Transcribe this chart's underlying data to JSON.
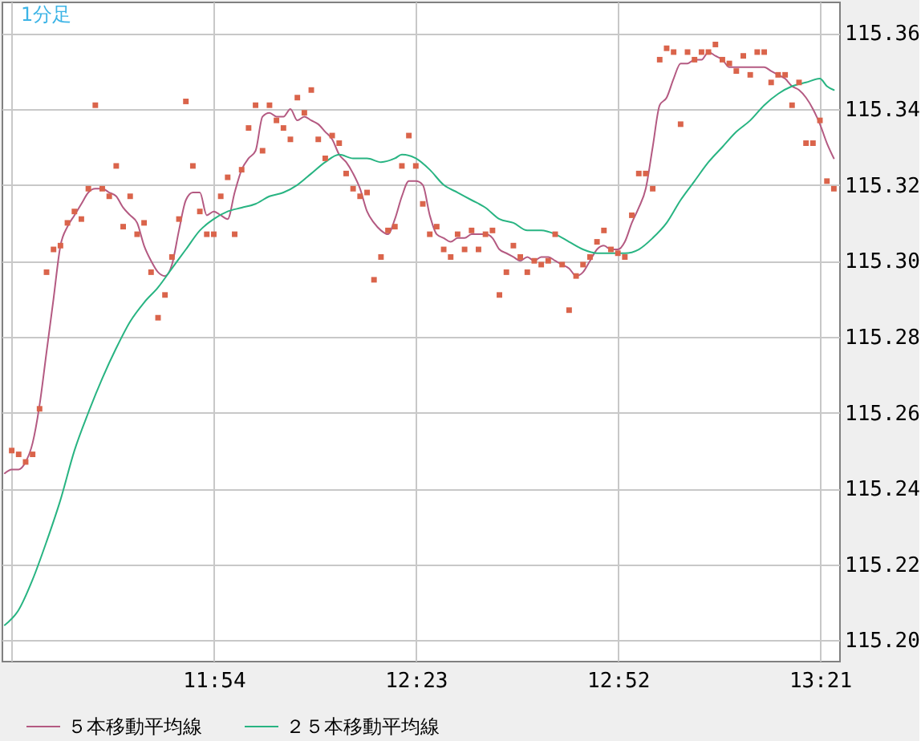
{
  "chart_data": {
    "type": "scatter",
    "title": "1分足",
    "xlim": [
      11.3925,
      13.396
    ],
    "xticks": [
      {
        "value": 11.4167,
        "label": null
      },
      {
        "value": 11.9,
        "label": "11:54"
      },
      {
        "value": 12.3833,
        "label": "12:23"
      },
      {
        "value": 12.8667,
        "label": "12:52"
      },
      {
        "value": 13.35,
        "label": "13:21"
      }
    ],
    "ylim": [
      115.1946,
      115.3683
    ],
    "yticks": [
      {
        "value": 115.2,
        "label": "115.20"
      },
      {
        "value": 115.22,
        "label": "115.22"
      },
      {
        "value": 115.24,
        "label": "115.24"
      },
      {
        "value": 115.26,
        "label": "115.26"
      },
      {
        "value": 115.28,
        "label": "115.28"
      },
      {
        "value": 115.3,
        "label": "115.30"
      },
      {
        "value": 115.32,
        "label": "115.32"
      },
      {
        "value": 115.34,
        "label": "115.34"
      },
      {
        "value": 115.36,
        "label": "115.36"
      }
    ],
    "grid": true,
    "legend": "bottom",
    "x": [
      11.4,
      11.4167,
      11.4333,
      11.45,
      11.4667,
      11.4833,
      11.5,
      11.5167,
      11.5333,
      11.55,
      11.5667,
      11.5833,
      11.6,
      11.6167,
      11.6333,
      11.65,
      11.6667,
      11.6833,
      11.7,
      11.7167,
      11.7333,
      11.75,
      11.7667,
      11.7833,
      11.8,
      11.8167,
      11.8333,
      11.85,
      11.8667,
      11.8833,
      11.9,
      11.9167,
      11.9333,
      11.95,
      11.9667,
      11.9833,
      12.0,
      12.0167,
      12.0333,
      12.05,
      12.0667,
      12.0833,
      12.1,
      12.1167,
      12.1333,
      12.15,
      12.1667,
      12.1833,
      12.2,
      12.2167,
      12.2333,
      12.25,
      12.2667,
      12.2833,
      12.3,
      12.3167,
      12.3333,
      12.35,
      12.3667,
      12.3833,
      12.4,
      12.4167,
      12.4333,
      12.45,
      12.4667,
      12.4833,
      12.5,
      12.5167,
      12.5333,
      12.55,
      12.5667,
      12.5833,
      12.6,
      12.6167,
      12.6333,
      12.65,
      12.6667,
      12.6833,
      12.7,
      12.7167,
      12.7333,
      12.75,
      12.7667,
      12.7833,
      12.8,
      12.8167,
      12.8333,
      12.85,
      12.8667,
      12.8833,
      12.9,
      12.9167,
      12.9333,
      12.95,
      12.9667,
      12.9833,
      13.0,
      13.0167,
      13.0333,
      13.05,
      13.0667,
      13.0833,
      13.1,
      13.1167,
      13.1333,
      13.15,
      13.1667,
      13.1833,
      13.2,
      13.2167,
      13.2333,
      13.25,
      13.2667,
      13.2833,
      13.3,
      13.3167,
      13.3333,
      13.35,
      13.3667,
      13.3833
    ],
    "series": [
      {
        "color": "#da644b",
        "marker": "square",
        "values": [
          null,
          115.25,
          115.249,
          115.247,
          115.249,
          115.261,
          115.297,
          115.303,
          115.304,
          115.31,
          115.313,
          115.311,
          115.319,
          115.341,
          115.319,
          115.317,
          115.325,
          115.309,
          115.317,
          115.307,
          115.31,
          115.297,
          115.285,
          115.291,
          115.301,
          115.311,
          115.342,
          115.325,
          115.313,
          115.307,
          115.307,
          115.317,
          115.322,
          115.307,
          115.324,
          115.335,
          115.341,
          115.329,
          115.341,
          115.337,
          115.335,
          115.332,
          115.343,
          115.339,
          115.345,
          115.332,
          115.327,
          115.333,
          115.331,
          115.323,
          115.319,
          115.317,
          115.318,
          115.295,
          115.301,
          115.308,
          115.309,
          115.325,
          115.333,
          115.325,
          115.315,
          115.307,
          115.309,
          115.303,
          115.301,
          115.307,
          115.303,
          115.308,
          115.303,
          115.307,
          115.308,
          115.291,
          115.297,
          115.304,
          115.301,
          115.297,
          115.3,
          115.299,
          115.3,
          115.307,
          115.299,
          115.287,
          115.296,
          115.299,
          115.301,
          115.305,
          115.308,
          115.303,
          115.302,
          115.301,
          115.312,
          115.323,
          115.323,
          115.319,
          115.353,
          115.356,
          115.355,
          115.336,
          115.355,
          115.353,
          115.355,
          115.355,
          115.357,
          115.353,
          115.352,
          115.35,
          115.354,
          115.349,
          115.355,
          115.355,
          115.347,
          115.349,
          115.349,
          115.341,
          115.347,
          115.331,
          115.331,
          115.337,
          115.321,
          115.319
        ]
      },
      {
        "type": "line",
        "name": "５本移動平均線",
        "color": "#b45a82",
        "values": [
          115.244,
          115.245,
          115.245,
          115.247,
          115.252,
          115.262,
          115.276,
          115.29,
          115.304,
          115.309,
          115.312,
          115.315,
          115.318,
          115.319,
          115.319,
          115.318,
          115.317,
          115.314,
          115.312,
          115.31,
          115.304,
          115.3,
          115.297,
          115.296,
          115.299,
          115.308,
          115.316,
          115.318,
          115.318,
          115.312,
          115.313,
          115.312,
          115.311,
          115.318,
          115.324,
          115.327,
          115.329,
          115.338,
          115.339,
          115.338,
          115.338,
          115.34,
          115.337,
          115.338,
          115.337,
          115.336,
          115.334,
          115.332,
          115.328,
          115.326,
          115.323,
          115.319,
          115.313,
          115.31,
          115.308,
          115.307,
          115.311,
          115.317,
          115.321,
          115.321,
          115.32,
          115.312,
          115.307,
          115.306,
          115.305,
          115.306,
          115.306,
          115.307,
          115.307,
          115.307,
          115.306,
          115.303,
          115.302,
          115.301,
          115.3,
          115.301,
          115.3,
          115.301,
          115.301,
          115.3,
          115.299,
          115.298,
          115.296,
          115.297,
          115.3,
          115.303,
          115.304,
          115.303,
          115.303,
          115.305,
          115.31,
          115.314,
          115.319,
          115.33,
          115.341,
          115.343,
          115.348,
          115.352,
          115.352,
          115.353,
          115.353,
          115.355,
          115.354,
          115.353,
          115.351,
          115.351,
          115.351,
          115.351,
          115.351,
          115.351,
          115.35,
          115.349,
          115.348,
          115.346,
          115.345,
          115.343,
          115.34,
          115.336,
          115.331,
          115.327
        ]
      },
      {
        "type": "line",
        "name": "２５本移動平均線",
        "color": "#28b482",
        "x": [
          11.4,
          11.4333,
          11.4667,
          11.5,
          11.5333,
          11.5667,
          11.6,
          11.6333,
          11.6667,
          11.7,
          11.7333,
          11.7667,
          11.8,
          11.8333,
          11.8667,
          11.9,
          11.9333,
          11.9667,
          12.0,
          12.0333,
          12.0667,
          12.1,
          12.1333,
          12.1667,
          12.2,
          12.2333,
          12.2667,
          12.3,
          12.3333,
          12.35,
          12.3833,
          12.4167,
          12.45,
          12.4833,
          12.5167,
          12.55,
          12.5833,
          12.6167,
          12.65,
          12.6833,
          12.7167,
          12.75,
          12.7833,
          12.8167,
          12.85,
          12.8833,
          12.9167,
          12.95,
          12.9833,
          13.0167,
          13.05,
          13.0833,
          13.1167,
          13.15,
          13.1833,
          13.2167,
          13.25,
          13.2833,
          13.3167,
          13.35,
          13.3667,
          13.3833
        ],
        "values": [
          115.204,
          115.208,
          115.216,
          115.226,
          115.237,
          115.25,
          115.26,
          115.269,
          115.277,
          115.284,
          115.289,
          115.293,
          115.298,
          115.303,
          115.308,
          115.311,
          115.313,
          115.314,
          115.315,
          115.317,
          115.318,
          115.32,
          115.323,
          115.326,
          115.328,
          115.327,
          115.327,
          115.326,
          115.327,
          115.328,
          115.327,
          115.324,
          115.32,
          115.318,
          115.316,
          115.314,
          115.311,
          115.31,
          115.308,
          115.308,
          115.307,
          115.305,
          115.303,
          115.302,
          115.302,
          115.302,
          115.303,
          115.306,
          115.31,
          115.316,
          115.321,
          115.326,
          115.33,
          115.334,
          115.337,
          115.341,
          115.344,
          115.346,
          115.347,
          115.348,
          115.346,
          115.345
        ]
      }
    ]
  }
}
